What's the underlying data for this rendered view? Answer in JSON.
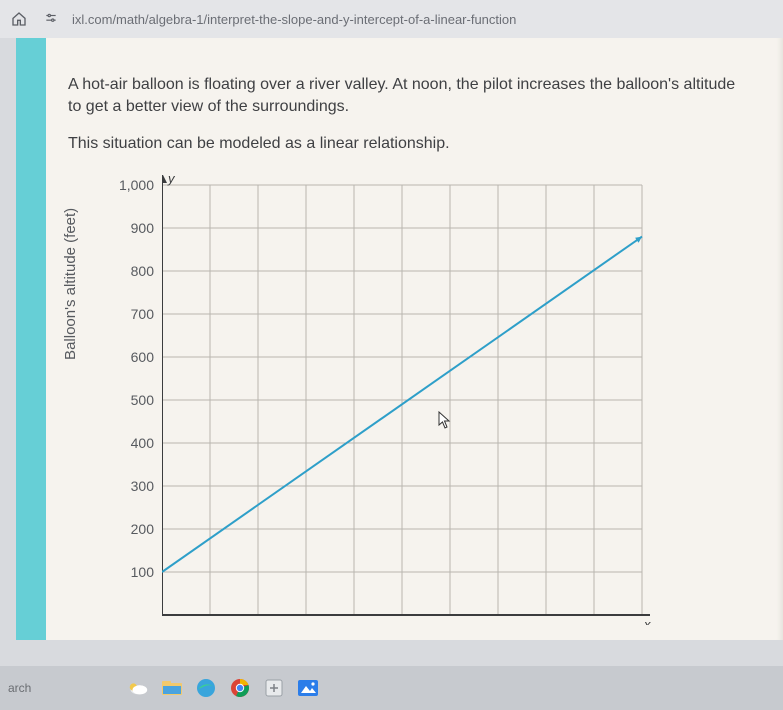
{
  "browser": {
    "url": "ixl.com/math/algebra-1/interpret-the-slope-and-y-intercept-of-a-linear-function"
  },
  "problem": {
    "text": "A hot-air balloon is floating over a river valley. At noon, the pilot increases the balloon's altitude to get a better view of the surroundings.",
    "subtext": "This situation can be modeled as a linear relationship."
  },
  "chart": {
    "type": "line",
    "ylabel": "Balloon's altitude (feet)",
    "ylabel_fontsize": 15,
    "y_axis_letter": "y",
    "x_axis_letter": "x",
    "ylim": [
      0,
      1000
    ],
    "ytick_step": 100,
    "ytick_labels": [
      "100",
      "200",
      "300",
      "400",
      "500",
      "600",
      "700",
      "800",
      "900",
      "1,000"
    ],
    "xlim": [
      0,
      10
    ],
    "xtick_step": 1,
    "grid_color": "#b9b6af",
    "axis_color": "#3b3c3e",
    "line_color": "#2e9fc9",
    "line_width": 2,
    "background_color": "#f6f3ee",
    "points": [
      {
        "x": 0,
        "y": 100
      },
      {
        "x": 10,
        "y": 880
      }
    ],
    "arrow_at_end": true
  },
  "taskbar": {
    "search_label": "arch"
  },
  "colors": {
    "page_bg": "#f6f3ee",
    "accent_strip": "#66cfd6",
    "browser_bar": "#e4e5e8",
    "taskbar": "#c7cacf",
    "text": "#3f4043"
  }
}
